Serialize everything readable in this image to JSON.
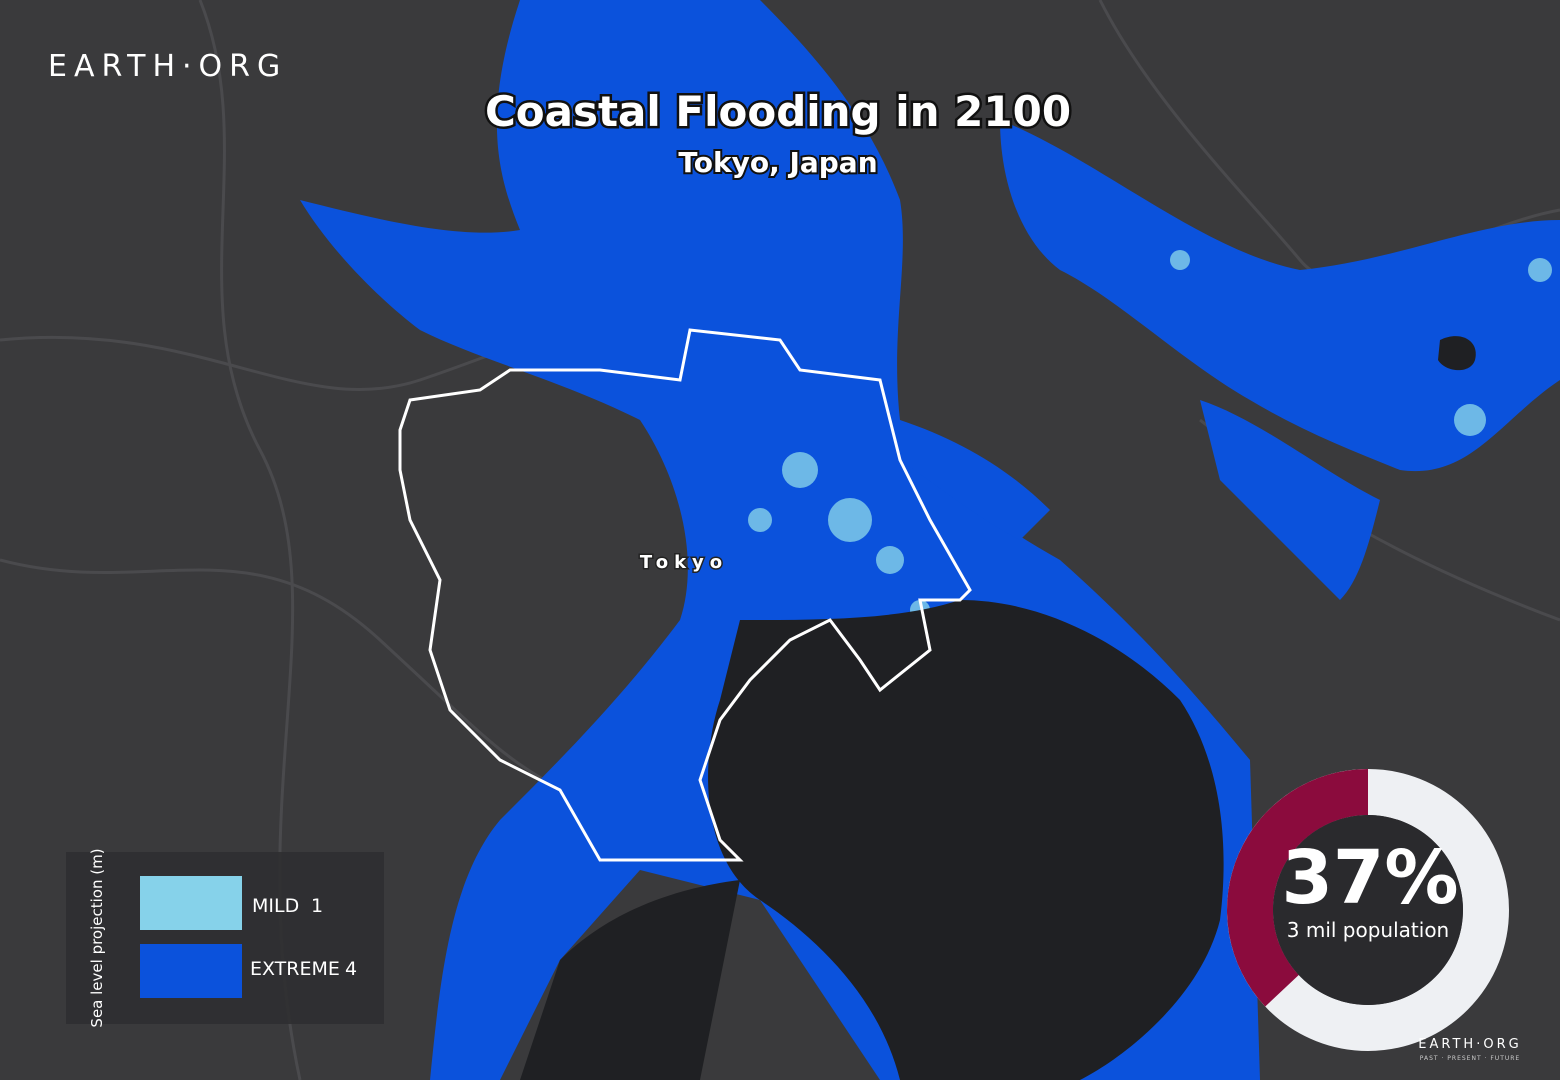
{
  "brand": "EARTH·ORG",
  "title": "Coastal Flooding in 2100",
  "subtitle": "Tokyo, Japan",
  "place_label": "Tokyo",
  "legend": {
    "title": "Sea level projection (m)",
    "items": [
      {
        "label": "MILD",
        "value": 1,
        "color": "#86d2ea"
      },
      {
        "label": "EXTREME",
        "value": 4,
        "color": "#0b52dc"
      }
    ]
  },
  "donut": {
    "value": 37,
    "value_label": "37%",
    "caption": "3 mil population",
    "color": "#8b0b3d",
    "rest_color": "#eef0f3"
  },
  "footer": {
    "brand": "EARTH·ORG",
    "tagline": "PAST · PRESENT · FUTURE"
  }
}
